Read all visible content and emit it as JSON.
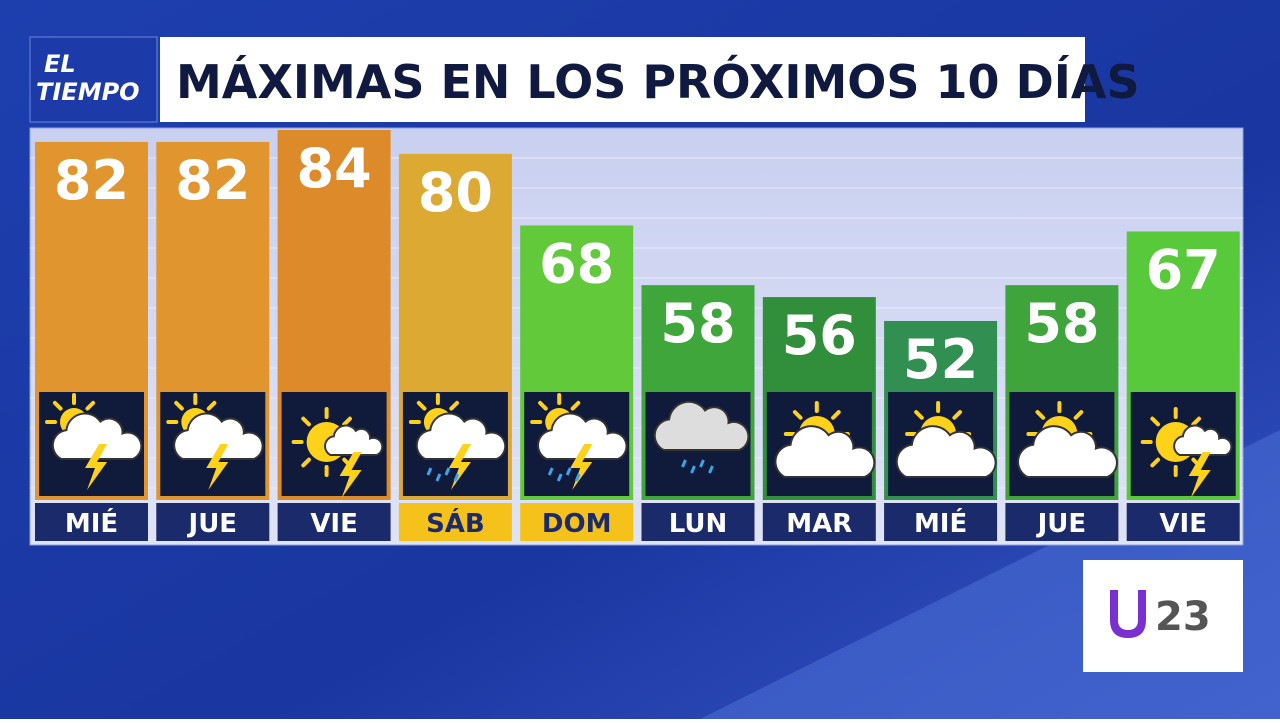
{
  "brand": {
    "show": [
      "EL",
      "TIEMPO"
    ],
    "station": "23"
  },
  "chart_data": {
    "type": "bar",
    "title": "MÁXIMAS EN LOS PRÓXIMOS 10 DÍAS",
    "categories": [
      "MIÉ",
      "JUE",
      "VIE",
      "SÁB",
      "DOM",
      "LUN",
      "MAR",
      "MIÉ",
      "JUE",
      "VIE"
    ],
    "values": [
      82,
      82,
      84,
      80,
      68,
      58,
      56,
      52,
      58,
      67
    ],
    "colors": [
      "#e0952f",
      "#e0952f",
      "#dd8a2b",
      "#dcaa33",
      "#62c93b",
      "#3fa63b",
      "#318e3a",
      "#318f52",
      "#3ea43b",
      "#58c93a"
    ],
    "label_colors": [
      "#1a2a6b",
      "#1a2a6b",
      "#1a2a6b",
      "#f5c21b",
      "#f5c21b",
      "#1a2a6b",
      "#1a2a6b",
      "#1a2a6b",
      "#1a2a6b",
      "#1a2a6b"
    ],
    "ylim": [
      22,
      84
    ]
  }
}
